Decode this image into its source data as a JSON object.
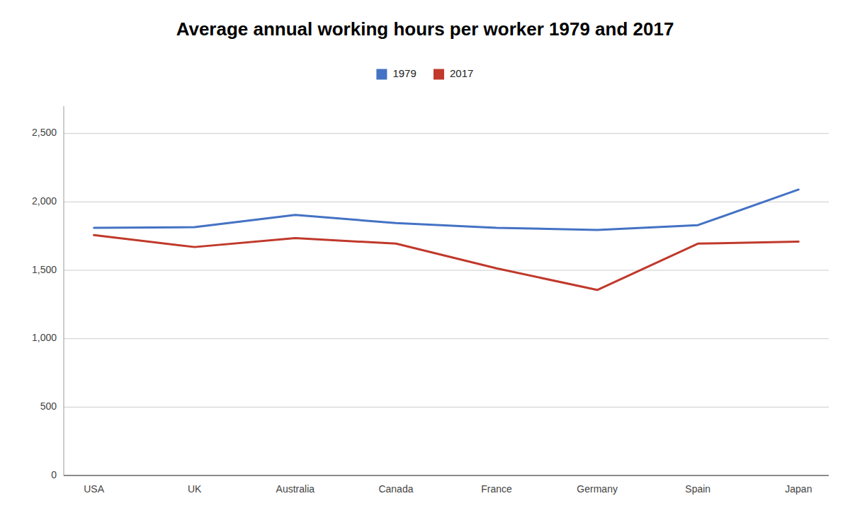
{
  "chart_data": {
    "type": "line",
    "title": "Average annual working hours per worker 1979 and 2017",
    "categories": [
      "USA",
      "UK",
      "Australia",
      "Canada",
      "France",
      "Germany",
      "Spain",
      "Japan"
    ],
    "series": [
      {
        "name": "1979",
        "color": "#4472C4",
        "values": [
          1810,
          1815,
          1905,
          1845,
          1810,
          1795,
          1830,
          2090
        ]
      },
      {
        "name": "2017",
        "color": "#C0392B",
        "values": [
          1757,
          1670,
          1735,
          1695,
          1514,
          1356,
          1695,
          1710
        ]
      }
    ],
    "ylim": [
      0,
      2700
    ],
    "yticks": [
      0,
      500,
      {
        "value": 1000,
        "label": "1,000"
      },
      {
        "value": 1500,
        "label": "1,500"
      },
      {
        "value": 2000,
        "label": "2,000"
      },
      {
        "value": 2500,
        "label": "2,500"
      }
    ],
    "grid": true,
    "legend": "top"
  }
}
